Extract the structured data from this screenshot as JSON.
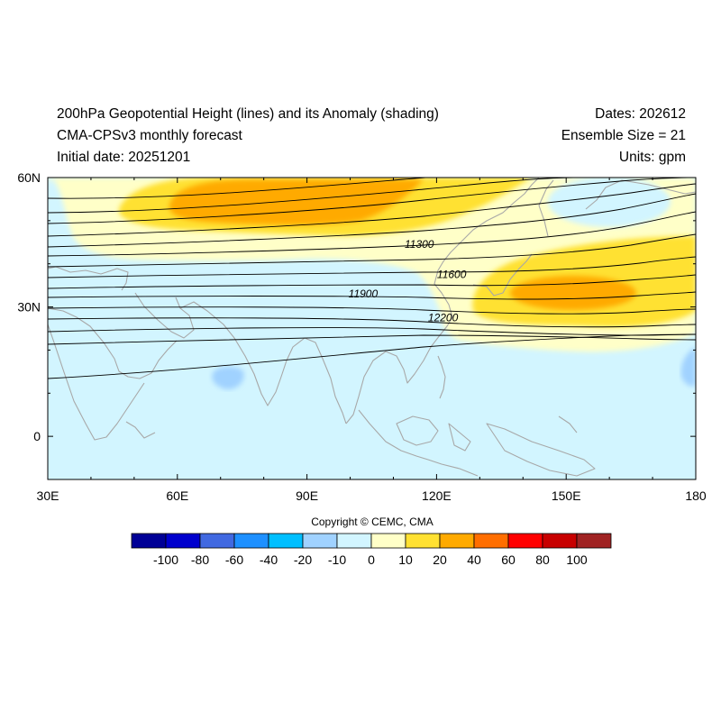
{
  "header": {
    "title_left_1": "200hPa Geopotential Height (lines) and its Anomaly (shading)",
    "title_left_2": "CMA-CPSv3 monthly forecast",
    "title_left_3": "Initial date: 20251201",
    "title_right_1": "Dates: 202612",
    "title_right_2": "Ensemble Size = 21",
    "title_right_3": "Units: gpm"
  },
  "map": {
    "lon_range": [
      30,
      180
    ],
    "lat_range": [
      -10,
      60
    ],
    "lon_ticks": [
      {
        "value": 30,
        "label": "30E"
      },
      {
        "value": 60,
        "label": "60E"
      },
      {
        "value": 90,
        "label": "90E"
      },
      {
        "value": 120,
        "label": "120E"
      },
      {
        "value": 150,
        "label": "150E"
      },
      {
        "value": 180,
        "label": "180"
      }
    ],
    "lat_ticks": [
      {
        "value": 60,
        "label": "60N"
      },
      {
        "value": 30,
        "label": "30N"
      },
      {
        "value": 0,
        "label": "0"
      }
    ],
    "contour_labels": [
      {
        "text": "11300",
        "lon": 116,
        "lat": 44.5
      },
      {
        "text": "11600",
        "lon": 123.5,
        "lat": 37.5
      },
      {
        "text": "11900",
        "lon": 103,
        "lat": 33
      },
      {
        "text": "12200",
        "lon": 121.5,
        "lat": 27.5
      }
    ],
    "colors": {
      "coast": "#a8a8a8",
      "contour": "#000000",
      "neutral_negative": "#d2f5ff",
      "neutral_positive": "#ffffc8"
    }
  },
  "colorbar": {
    "labels": [
      "-100",
      "-80",
      "-60",
      "-40",
      "-20",
      "-10",
      "0",
      "10",
      "20",
      "40",
      "60",
      "80",
      "100"
    ],
    "colors": [
      "#000096",
      "#0000cd",
      "#4169e1",
      "#1e90ff",
      "#00bfff",
      "#a0d2ff",
      "#d2f5ff",
      "#ffffc8",
      "#ffe132",
      "#ffaa00",
      "#ff6e00",
      "#ff0000",
      "#c80000",
      "#a02323"
    ]
  },
  "copyright": "Copyright © CEMC, CMA"
}
